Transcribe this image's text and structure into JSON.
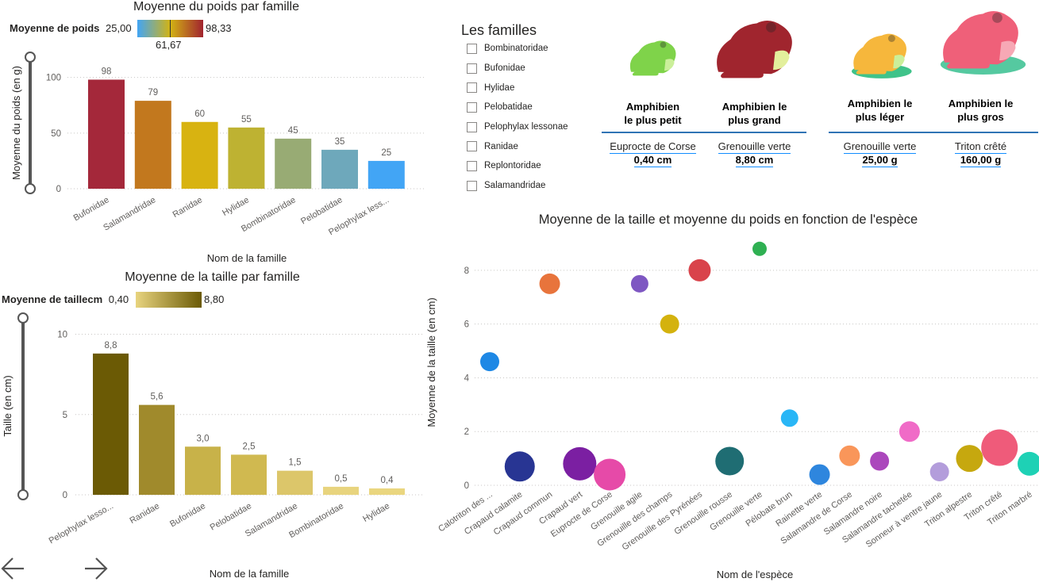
{
  "weight_chart": {
    "title": "Moyenne du poids par famille",
    "legend_label": "Moyenne de poids",
    "legend_min": "25,00",
    "legend_max": "98,33",
    "legend_mid": "61,67",
    "ylabel": "Moyenne du poids (en g)",
    "xlabel": "Nom de la famille"
  },
  "size_chart": {
    "title": "Moyenne de la taille par famille",
    "legend_label": "Moyenne de taillecm",
    "legend_min": "0,40",
    "legend_max": "8,80",
    "ylabel": "Taille (en cm)",
    "xlabel": "Nom de la famille"
  },
  "slicer": {
    "title": "Les familles",
    "items": [
      "Bombinatoridae",
      "Bufonidae",
      "Hylidae",
      "Pelobatidae",
      "Pelophylax lessonae",
      "Ranidae",
      "Replontoridae",
      "Salamandridae"
    ]
  },
  "cards": [
    {
      "caption_line1": "Amphibien",
      "caption_line2": "le plus petit",
      "species": "Euprocte de Corse",
      "value": "0,40 cm",
      "frog_color": "#7fd34a"
    },
    {
      "caption_line1": "Amphibien le",
      "caption_line2": "plus grand",
      "species": "Grenouille verte",
      "value": "8,80 cm",
      "frog_color": "#a0252e"
    },
    {
      "caption_line1": "Amphibien le",
      "caption_line2": "plus léger",
      "species": "Grenouille verte",
      "value": "25,00 g",
      "frog_color": "#f6b73c"
    },
    {
      "caption_line1": "Amphibien le",
      "caption_line2": "plus gros",
      "species": "Triton crêté",
      "value": "160,00 g",
      "frog_color": "#ef6079"
    }
  ],
  "scatter_chart": {
    "title": "Moyenne de la taille et moyenne du poids en fonction de l'espèce",
    "ylabel": "Moyenne de la taille (en cm)",
    "xlabel": "Nom de l'espèce"
  },
  "nav": {
    "back_icon": "arrow-left-icon",
    "forward_icon": "arrow-right-icon"
  },
  "chart_data": [
    {
      "type": "bar",
      "title": "Moyenne du poids par famille",
      "xlabel": "Nom de la famille",
      "ylabel": "Moyenne du poids (en g)",
      "categories": [
        "Bufonidae",
        "Salamandridae",
        "Ranidae",
        "Hylidae",
        "Bombinatoridae",
        "Pelobatidae",
        "Pelophylax less..."
      ],
      "values": [
        98,
        79,
        60,
        55,
        45,
        35,
        25
      ],
      "data_labels": [
        "98",
        "79",
        "60",
        "55",
        "45",
        "35",
        "25"
      ],
      "colors": [
        "#a4283a",
        "#c2781e",
        "#d8b311",
        "#beb232",
        "#98ab74",
        "#6ea8bb",
        "#42a5f5"
      ],
      "ylim": [
        0,
        110
      ],
      "yticks": [
        0,
        50,
        100
      ],
      "grid": true
    },
    {
      "type": "bar",
      "title": "Moyenne de la taille par famille",
      "xlabel": "Nom de la famille",
      "ylabel": "Taille (en cm)",
      "categories": [
        "Pelophylax lesso...",
        "Ranidae",
        "Bufonidae",
        "Pelobatidae",
        "Salamandridae",
        "Bombinatoridae",
        "Hylidae"
      ],
      "values": [
        8.8,
        5.6,
        3.0,
        2.5,
        1.5,
        0.5,
        0.4
      ],
      "data_labels": [
        "8,8",
        "5,6",
        "3,0",
        "2,5",
        "1,5",
        "0,5",
        "0,4"
      ],
      "colors": [
        "#6b5a05",
        "#a08a2c",
        "#c8b249",
        "#d0b950",
        "#dcc66a",
        "#e8d47e",
        "#ead67f"
      ],
      "ylim": [
        0,
        11
      ],
      "yticks": [
        0,
        5,
        10
      ],
      "grid": true
    },
    {
      "type": "scatter",
      "title": "Moyenne de la taille et moyenne du poids en fonction de l'espèce",
      "xlabel": "Nom de l'espèce",
      "ylabel": "Moyenne de la taille (en cm)",
      "ylim": [
        0,
        9
      ],
      "yticks": [
        0,
        2,
        4,
        6,
        8
      ],
      "grid": true,
      "points": [
        {
          "x": "Calotriton des ...",
          "y": 4.6,
          "size": 12,
          "color": "#1e88e5"
        },
        {
          "x": "Crapaud calamite",
          "y": 0.7,
          "size": 19,
          "color": "#283593"
        },
        {
          "x": "Crapaud commun",
          "y": 7.5,
          "size": 13,
          "color": "#e8743c"
        },
        {
          "x": "Crapaud vert",
          "y": 0.8,
          "size": 21,
          "color": "#7b1fa2"
        },
        {
          "x": "Euprocte de Corse",
          "y": 0.4,
          "size": 20,
          "color": "#e64aa8"
        },
        {
          "x": "Grenouille agile",
          "y": 7.5,
          "size": 11,
          "color": "#7e57c2"
        },
        {
          "x": "Grenouille des champs",
          "y": 6.0,
          "size": 12,
          "color": "#d4b20e"
        },
        {
          "x": "Grenouille des Pyrénées",
          "y": 8.0,
          "size": 14,
          "color": "#d9434b"
        },
        {
          "x": "Grenouille rousse",
          "y": 0.9,
          "size": 18,
          "color": "#1f6d73"
        },
        {
          "x": "Grenouille verte",
          "y": 8.8,
          "size": 9,
          "color": "#2fb052"
        },
        {
          "x": "Pélobate brun",
          "y": 2.5,
          "size": 11,
          "color": "#29b6f6"
        },
        {
          "x": "Rainette verte",
          "y": 0.4,
          "size": 13,
          "color": "#2e86de"
        },
        {
          "x": "Salamandre de Corse",
          "y": 1.1,
          "size": 13,
          "color": "#f9965a"
        },
        {
          "x": "Salamandre noire",
          "y": 0.9,
          "size": 12,
          "color": "#ab47bc"
        },
        {
          "x": "Salamandre tachetée",
          "y": 2.0,
          "size": 13,
          "color": "#f06bc7"
        },
        {
          "x": "Sonneur à ventre jaune",
          "y": 0.5,
          "size": 12,
          "color": "#b39ddb"
        },
        {
          "x": "Triton alpestre",
          "y": 1.0,
          "size": 17,
          "color": "#c6a80f"
        },
        {
          "x": "Triton crêté",
          "y": 1.4,
          "size": 23,
          "color": "#ef5b7a"
        },
        {
          "x": "Triton marbré",
          "y": 0.8,
          "size": 15,
          "color": "#1ed1b5"
        }
      ]
    }
  ]
}
